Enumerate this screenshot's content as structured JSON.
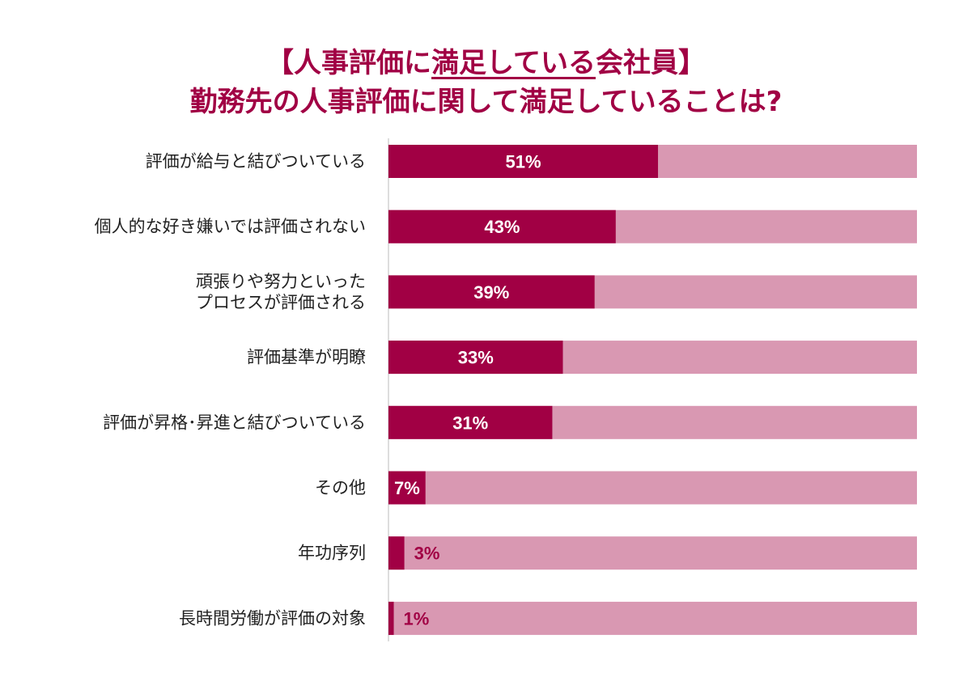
{
  "title": {
    "line1_prefix": "【人事評価に",
    "line1_underlined": "満足している",
    "line1_suffix": "会社員】",
    "line2": "勤務先の人事評価に関して満足していることは?"
  },
  "colors": {
    "accent": "#a10044",
    "track": "#d998b2",
    "label_inside": "#ffffff",
    "label_outside": "#a10044",
    "axis": "#bbbbbb"
  },
  "chart_data": {
    "type": "bar",
    "orientation": "horizontal",
    "stacked_to_100": true,
    "categories": [
      [
        "評価が給与と結びついている"
      ],
      [
        "個人的な好き嫌いでは評価されない"
      ],
      [
        "頑張りや努力といった",
        "プロセスが評価される"
      ],
      [
        "評価基準が明瞭"
      ],
      [
        "評価が昇格･昇進と結びついている"
      ],
      [
        "その他"
      ],
      [
        "年功序列"
      ],
      [
        "長時間労働が評価の対象"
      ]
    ],
    "values": [
      51,
      43,
      39,
      33,
      31,
      7,
      3,
      1
    ],
    "value_labels": [
      "51%",
      "43%",
      "39%",
      "33%",
      "31%",
      "7%",
      "3%",
      "1%"
    ],
    "xlim": [
      0,
      100
    ],
    "grid": false,
    "legend": "none"
  }
}
